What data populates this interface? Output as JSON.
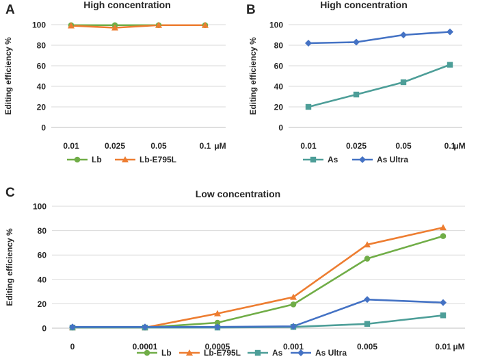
{
  "colors": {
    "Lb": "#70ad47",
    "Lb-E795L": "#ed7d31",
    "As": "#4d9e98",
    "As Ultra": "#4472c4"
  },
  "chart_data": [
    {
      "panel": "A",
      "type": "line",
      "title": "High concentration",
      "ylabel": "Editing efficiency %",
      "xlabel": "",
      "x_unit": "μM",
      "categories": [
        "0.01",
        "0.025",
        "0.05",
        "0.1"
      ],
      "ylim": [
        0,
        100
      ],
      "yticks": [
        0,
        20,
        40,
        60,
        80,
        100
      ],
      "grid": true,
      "legend_position": "bottom",
      "series": [
        {
          "name": "Lb",
          "marker": "circle",
          "values": [
            99.5,
            99.5,
            99.5,
            99.5
          ]
        },
        {
          "name": "Lb-E795L",
          "marker": "triangle",
          "values": [
            99,
            97,
            99.5,
            99.5
          ]
        }
      ]
    },
    {
      "panel": "B",
      "type": "line",
      "title": "High concentration",
      "ylabel": "Editing efficiency %",
      "xlabel": "",
      "x_unit": "μM",
      "categories": [
        "0.01",
        "0.025",
        "0.05",
        "0.1"
      ],
      "ylim": [
        0,
        100
      ],
      "yticks": [
        0,
        20,
        40,
        60,
        80,
        100
      ],
      "grid": true,
      "legend_position": "bottom",
      "series": [
        {
          "name": "As",
          "marker": "square",
          "values": [
            20,
            32,
            44,
            61
          ]
        },
        {
          "name": "As Ultra",
          "marker": "diamond",
          "values": [
            82,
            83,
            90,
            93
          ]
        }
      ]
    },
    {
      "panel": "C",
      "type": "line",
      "title": "Low concentration",
      "ylabel": "Editing efficiency %",
      "xlabel": "",
      "x_unit": "μM",
      "categories": [
        "0",
        "0.0001",
        "0.0005",
        "0.001",
        "0.005",
        "0.01"
      ],
      "ylim": [
        0,
        100
      ],
      "yticks": [
        0,
        20,
        40,
        60,
        80,
        100
      ],
      "grid": true,
      "legend_position": "bottom",
      "series": [
        {
          "name": "Lb",
          "marker": "circle",
          "values": [
            0.5,
            0.5,
            4.5,
            19.5,
            57,
            75.5
          ]
        },
        {
          "name": "Lb-E795L",
          "marker": "triangle",
          "values": [
            0.5,
            0.5,
            12,
            25.5,
            68.5,
            82.5
          ]
        },
        {
          "name": "As",
          "marker": "square",
          "values": [
            0.5,
            0.5,
            0.5,
            1,
            3.5,
            10.5
          ]
        },
        {
          "name": "As Ultra",
          "marker": "diamond",
          "values": [
            1,
            1,
            1,
            1.5,
            23.5,
            21
          ]
        }
      ]
    }
  ]
}
